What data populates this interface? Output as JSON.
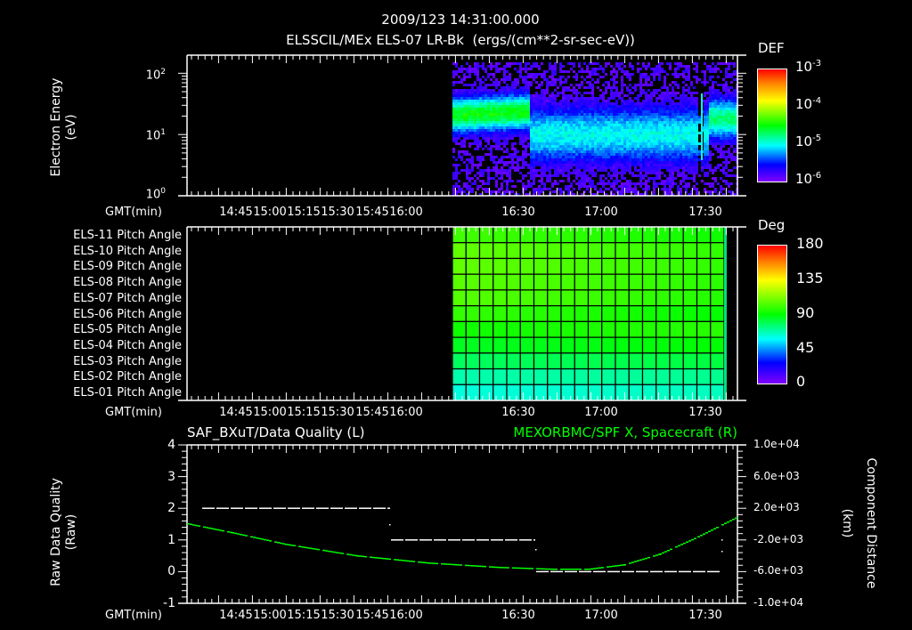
{
  "header": {
    "datetime": "2009/123 14:31:00.000",
    "title": "ELSSCIL/MEx ELS-07 LR-Bk  (ergs/(cm**2-sr-sec-eV))"
  },
  "panels": {
    "spectrogram": {
      "ylabel_line1": "Electron Energy",
      "ylabel_line2": "(eV)",
      "yticks": [
        "10",
        "10",
        "10"
      ],
      "ytick_exps": [
        "2",
        "1",
        "0"
      ],
      "xaxis_label": "GMT(min)",
      "colorbar": {
        "label": "DEF",
        "ticks": [
          "10",
          "10",
          "10",
          "10"
        ],
        "tick_exps": [
          "-3",
          "-4",
          "-5",
          "-6"
        ]
      }
    },
    "pitch": {
      "rows": [
        "ELS-11 Pitch Angle",
        "ELS-10 Pitch Angle",
        "ELS-09 Pitch Angle",
        "ELS-08 Pitch Angle",
        "ELS-07 Pitch Angle",
        "ELS-06 Pitch Angle",
        "ELS-05 Pitch Angle",
        "ELS-04 Pitch Angle",
        "ELS-03 Pitch Angle",
        "ELS-02 Pitch Angle",
        "ELS-01 Pitch Angle"
      ],
      "xaxis_label": "GMT(min)",
      "colorbar": {
        "label": "Deg",
        "ticks": [
          "180",
          "135",
          "90",
          "45",
          "0"
        ]
      }
    },
    "timeseries": {
      "title_left": "SAF_BXuT/Data Quality (L)",
      "title_right": "MEXORBMC/SPF X, Spacecraft (R)",
      "ylabel_left_line1": "Raw Data Quality",
      "ylabel_left_line2": "(Raw)",
      "ylabel_right_line1": "Component Distance",
      "ylabel_right_line2": "(km)",
      "yticks_left": [
        "4",
        "3",
        "2",
        "1",
        "0",
        "-1"
      ],
      "yticks_right": [
        "1.0e+04",
        "6.0e+03",
        "2.0e+03",
        "-2.0e+03",
        "-6.0e+03",
        "-1.0e+04"
      ],
      "xaxis_label": "GMT(min)"
    }
  },
  "time_ticks": [
    "14:45",
    "15:00",
    "15:15",
    "15:30",
    "15:45",
    "16:00",
    "16:30",
    "17:00",
    "17:30"
  ],
  "colors": {
    "right_series": "#00ff00",
    "left_series": "#ffffff",
    "background": "#000000"
  },
  "chart_data": [
    {
      "type": "heatmap",
      "title": "ELSSCIL/MEx ELS-07 LR-Bk  (ergs/(cm**2-sr-sec-eV))",
      "subtitle": "2009/123 14:31:00.000",
      "xlabel": "GMT(min)",
      "ylabel": "Electron Energy (eV)",
      "yscale": "log",
      "ylim": [
        1,
        150
      ],
      "x_ticks": [
        "14:45",
        "15:00",
        "15:15",
        "15:30",
        "15:45",
        "16:00",
        "16:30",
        "17:00",
        "17:30"
      ],
      "colorbar": {
        "label": "DEF",
        "scale": "log",
        "range": [
          1e-06,
          0.001
        ]
      },
      "data_start": "16:05",
      "data_end": "17:48",
      "features": [
        {
          "time": "16:05-16:35",
          "peak_energy_eV": 12,
          "peak_DEF": 0.0001
        },
        {
          "time": "16:40-17:40",
          "peak_energy_eV": 6,
          "peak_DEF": 2e-05
        },
        {
          "time": "17:40-17:48",
          "peak_energy_eV": 12,
          "peak_DEF": 5e-05
        }
      ]
    },
    {
      "type": "heatmap",
      "title": "ELS Pitch Angle",
      "xlabel": "GMT(min)",
      "categories": [
        "ELS-11",
        "ELS-10",
        "ELS-09",
        "ELS-08",
        "ELS-07",
        "ELS-06",
        "ELS-05",
        "ELS-04",
        "ELS-03",
        "ELS-02",
        "ELS-01"
      ],
      "colorbar": {
        "label": "Deg",
        "range": [
          0,
          180
        ],
        "ticks": [
          0,
          45,
          90,
          135,
          180
        ]
      },
      "data_start": "16:05",
      "data_end": "17:47",
      "approx_values_deg": [
        100,
        105,
        105,
        104,
        103,
        98,
        92,
        86,
        78,
        68,
        62
      ]
    },
    {
      "type": "line",
      "title_left": "SAF_BXuT/Data Quality (L)",
      "title_right": "MEXORBMC/SPF X, Spacecraft (R)",
      "xlabel": "GMT(min)",
      "ylabel_left": "Raw Data Quality (Raw)",
      "ylabel_right": "Component Distance (km)",
      "ylim_left": [
        -1,
        4
      ],
      "ylim_right": [
        -10000,
        10000
      ],
      "series": [
        {
          "name": "Data Quality (L)",
          "axis": "left",
          "x": [
            "14:35",
            "15:45",
            "15:46",
            "16:35",
            "16:36",
            "17:45"
          ],
          "values": [
            2,
            2,
            1,
            1,
            0,
            0
          ]
        },
        {
          "name": "SPF X (R)",
          "axis": "right",
          "x": [
            "14:31",
            "15:00",
            "15:30",
            "16:00",
            "16:30",
            "16:45",
            "17:00",
            "17:15",
            "17:30",
            "17:48"
          ],
          "values": [
            100,
            -1500,
            -2800,
            -4000,
            -5000,
            -5300,
            -5200,
            -4200,
            -1800,
            1500
          ]
        }
      ]
    }
  ]
}
